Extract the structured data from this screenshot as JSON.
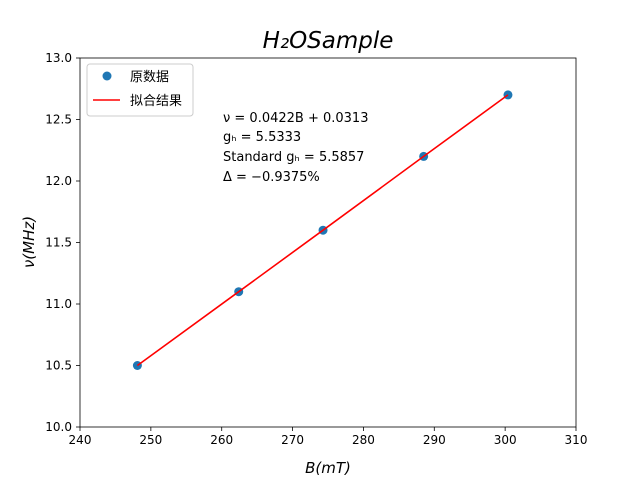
{
  "chart_data": {
    "type": "scatter",
    "title": "H₂OSample",
    "xlabel": "B(mT)",
    "ylabel": "ν(MHz)",
    "xlim": [
      240,
      310
    ],
    "ylim": [
      10.0,
      13.0
    ],
    "xticks": [
      "240",
      "250",
      "260",
      "270",
      "280",
      "290",
      "300",
      "310"
    ],
    "yticks": [
      "10.0",
      "10.5",
      "11.0",
      "11.5",
      "12.0",
      "12.5",
      "13.0"
    ],
    "grid": false,
    "legend_position": "upper-left",
    "series": [
      {
        "name": "原数据",
        "kind": "scatter",
        "color": "#1f77b4",
        "x": [
          248.1,
          262.4,
          274.3,
          288.5,
          300.4
        ],
        "y": [
          10.5,
          11.1,
          11.6,
          12.2,
          12.7
        ]
      },
      {
        "name": "拟合结果",
        "kind": "line",
        "color": "#ff0000",
        "x": [
          248.1,
          262.4,
          274.3,
          288.5,
          300.4
        ],
        "y": [
          10.5,
          11.1,
          11.6,
          12.2,
          12.7
        ]
      }
    ],
    "annotations": [
      "ν = 0.0422B + 0.0313",
      "gₕ = 5.5333",
      "Standard gₕ = 5.5857",
      "Δ = −0.9375%"
    ]
  }
}
